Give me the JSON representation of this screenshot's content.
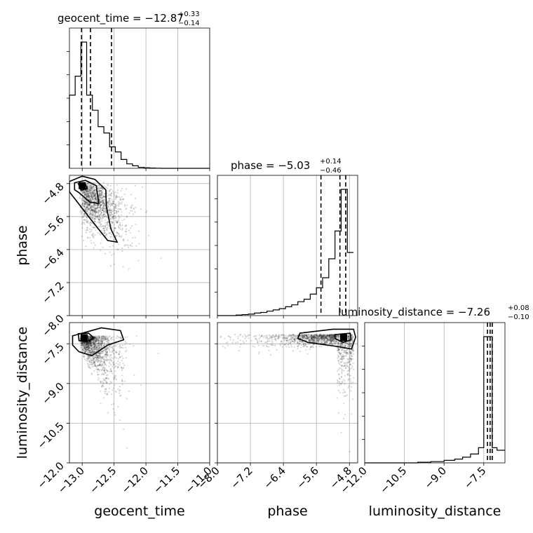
{
  "chart_data": {
    "type": "corner",
    "parameters": [
      "geocent_time",
      "phase",
      "luminosity_distance"
    ],
    "titles": [
      {
        "parameter": "geocent_time",
        "name": "geocent_time",
        "median": "−12.87",
        "plus": "+0.33",
        "minus": "−0.14"
      },
      {
        "parameter": "phase",
        "name": "phase",
        "median": "−5.03",
        "plus": "+0.14",
        "minus": "−0.46"
      },
      {
        "parameter": "luminosity_distance",
        "name": "luminosity_distance",
        "median": "−7.26",
        "plus": "+0.08",
        "minus": "−0.10"
      }
    ],
    "axes": {
      "geocent_time": {
        "range": [
          -13.2,
          -11.0
        ],
        "ticks": [
          -13.0,
          -12.5,
          -12.0,
          -11.5,
          -11.0
        ],
        "tick_labels": [
          "−13.0",
          "−12.5",
          "−12.0",
          "−11.5",
          "−11.0"
        ]
      },
      "phase": {
        "range": [
          -8.0,
          -4.6
        ],
        "ticks": [
          -8.0,
          -7.2,
          -6.4,
          -5.6,
          -4.8
        ],
        "tick_labels": [
          "−8.0",
          "−7.2",
          "−6.4",
          "−5.6",
          "−4.8"
        ]
      },
      "luminosity_distance": {
        "range": [
          -12.0,
          -6.7
        ],
        "ticks": [
          -12.0,
          -10.5,
          -9.0,
          -7.5
        ],
        "tick_labels": [
          "−12.0",
          "−10.5",
          "−9.0",
          "−7.5"
        ]
      }
    },
    "histograms": {
      "geocent_time": {
        "bins": [
          -13.2,
          -13.11,
          -13.02,
          -12.93,
          -12.84,
          -12.75,
          -12.66,
          -12.57,
          -12.48,
          -12.39,
          -12.3,
          -12.21,
          -12.12,
          -12.03,
          -11.94,
          -11.85,
          -11.76,
          -11.0
        ],
        "counts": [
          0.58,
          0.73,
          1.0,
          0.58,
          0.46,
          0.33,
          0.28,
          0.17,
          0.13,
          0.07,
          0.035,
          0.02,
          0.008,
          0.004,
          0.002,
          0.001,
          0.0
        ],
        "quantiles": [
          -13.01,
          -12.87,
          -12.54
        ]
      },
      "phase": {
        "bins": [
          -8.0,
          -7.85,
          -7.7,
          -7.55,
          -7.4,
          -7.25,
          -7.1,
          -6.95,
          -6.8,
          -6.65,
          -6.5,
          -6.35,
          -6.2,
          -6.05,
          -5.9,
          -5.75,
          -5.6,
          -5.45,
          -5.3,
          -5.15,
          -5.0,
          -4.85,
          -4.7
        ],
        "counts": [
          0.0,
          0.0,
          0.0,
          0.004,
          0.008,
          0.012,
          0.02,
          0.025,
          0.035,
          0.045,
          0.055,
          0.07,
          0.085,
          0.11,
          0.13,
          0.17,
          0.22,
          0.3,
          0.45,
          0.67,
          1.0,
          0.5
        ],
        "quantiles": [
          -5.49,
          -5.03,
          -4.89
        ]
      },
      "luminosity_distance": {
        "bins": [
          -12.0,
          -10.0,
          -9.5,
          -9.0,
          -8.6,
          -8.3,
          -8.0,
          -7.7,
          -7.5,
          -7.36,
          -7.18,
          -7.0,
          -6.7
        ],
        "counts": [
          0.0,
          0.005,
          0.01,
          0.02,
          0.03,
          0.045,
          0.07,
          0.12,
          1.0,
          1.0,
          0.12,
          0.1
        ],
        "quantiles": [
          -7.36,
          -7.26,
          -7.18
        ]
      }
    },
    "scatter_2d": [
      {
        "x": "geocent_time",
        "y": "phase",
        "mode": [
          -13.0,
          -4.85
        ]
      },
      {
        "x": "geocent_time",
        "y": "luminosity_distance",
        "mode": [
          -12.97,
          -7.27
        ]
      },
      {
        "x": "phase",
        "y": "luminosity_distance",
        "mode": [
          -4.94,
          -7.27
        ]
      }
    ]
  }
}
